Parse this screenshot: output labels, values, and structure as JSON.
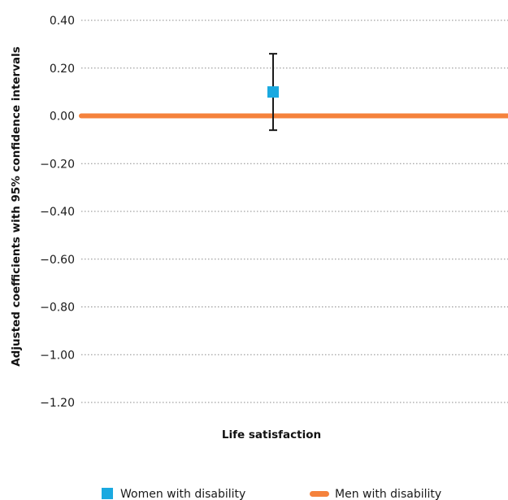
{
  "chart_data": {
    "type": "scatter",
    "xlabel": "Life satisfaction",
    "ylabel": "Adjusted coefficients with 95% confidence intervals",
    "ylim": [
      -1.2,
      0.4
    ],
    "yticks": [
      "0.40",
      "0.20",
      "0.00",
      "−0.20",
      "−0.40",
      "−0.60",
      "−0.80",
      "−1.00",
      "−1.20"
    ],
    "ytick_values": [
      0.4,
      0.2,
      0.0,
      -0.2,
      -0.4,
      -0.6,
      -0.8,
      -1.0,
      -1.2
    ],
    "grid": "horizontal dotted",
    "legend_position": "bottom",
    "series": [
      {
        "name": "Women with disability",
        "kind": "point_with_error",
        "color": "#1aa9e0",
        "marker": "square",
        "value": 0.1,
        "ci_lower": -0.06,
        "ci_upper": 0.26
      },
      {
        "name": "Men with disability",
        "kind": "reference_line",
        "color": "#f5823c",
        "value": 0.0
      }
    ]
  }
}
